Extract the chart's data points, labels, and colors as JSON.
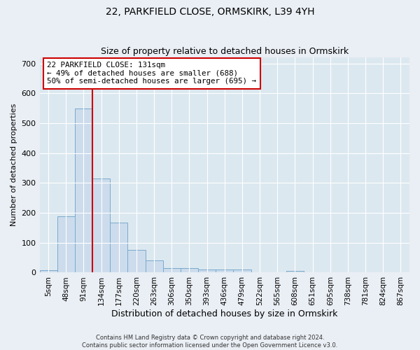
{
  "title_line1": "22, PARKFIELD CLOSE, ORMSKIRK, L39 4YH",
  "title_line2": "Size of property relative to detached houses in Ormskirk",
  "xlabel": "Distribution of detached houses by size in Ormskirk",
  "ylabel": "Number of detached properties",
  "bar_color": "#ccdcec",
  "bar_edge_color": "#7aaacc",
  "vline_color": "#cc0000",
  "vline_x_idx": 2.5,
  "annotation_text": "22 PARKFIELD CLOSE: 131sqm\n← 49% of detached houses are smaller (688)\n50% of semi-detached houses are larger (695) →",
  "annotation_box_color": "#ffffff",
  "annotation_box_edge": "#cc0000",
  "categories": [
    "5sqm",
    "48sqm",
    "91sqm",
    "134sqm",
    "177sqm",
    "220sqm",
    "263sqm",
    "306sqm",
    "350sqm",
    "393sqm",
    "436sqm",
    "479sqm",
    "522sqm",
    "565sqm",
    "608sqm",
    "651sqm",
    "695sqm",
    "738sqm",
    "781sqm",
    "824sqm",
    "867sqm"
  ],
  "values": [
    8,
    188,
    548,
    315,
    168,
    76,
    40,
    14,
    14,
    10,
    10,
    10,
    0,
    0,
    5,
    0,
    0,
    0,
    0,
    0,
    0
  ],
  "ylim": [
    0,
    720
  ],
  "yticks": [
    0,
    100,
    200,
    300,
    400,
    500,
    600,
    700
  ],
  "footnote": "Contains HM Land Registry data © Crown copyright and database right 2024.\nContains public sector information licensed under the Open Government Licence v3.0.",
  "bg_color": "#eaeff5",
  "plot_bg_color": "#dce8f0"
}
